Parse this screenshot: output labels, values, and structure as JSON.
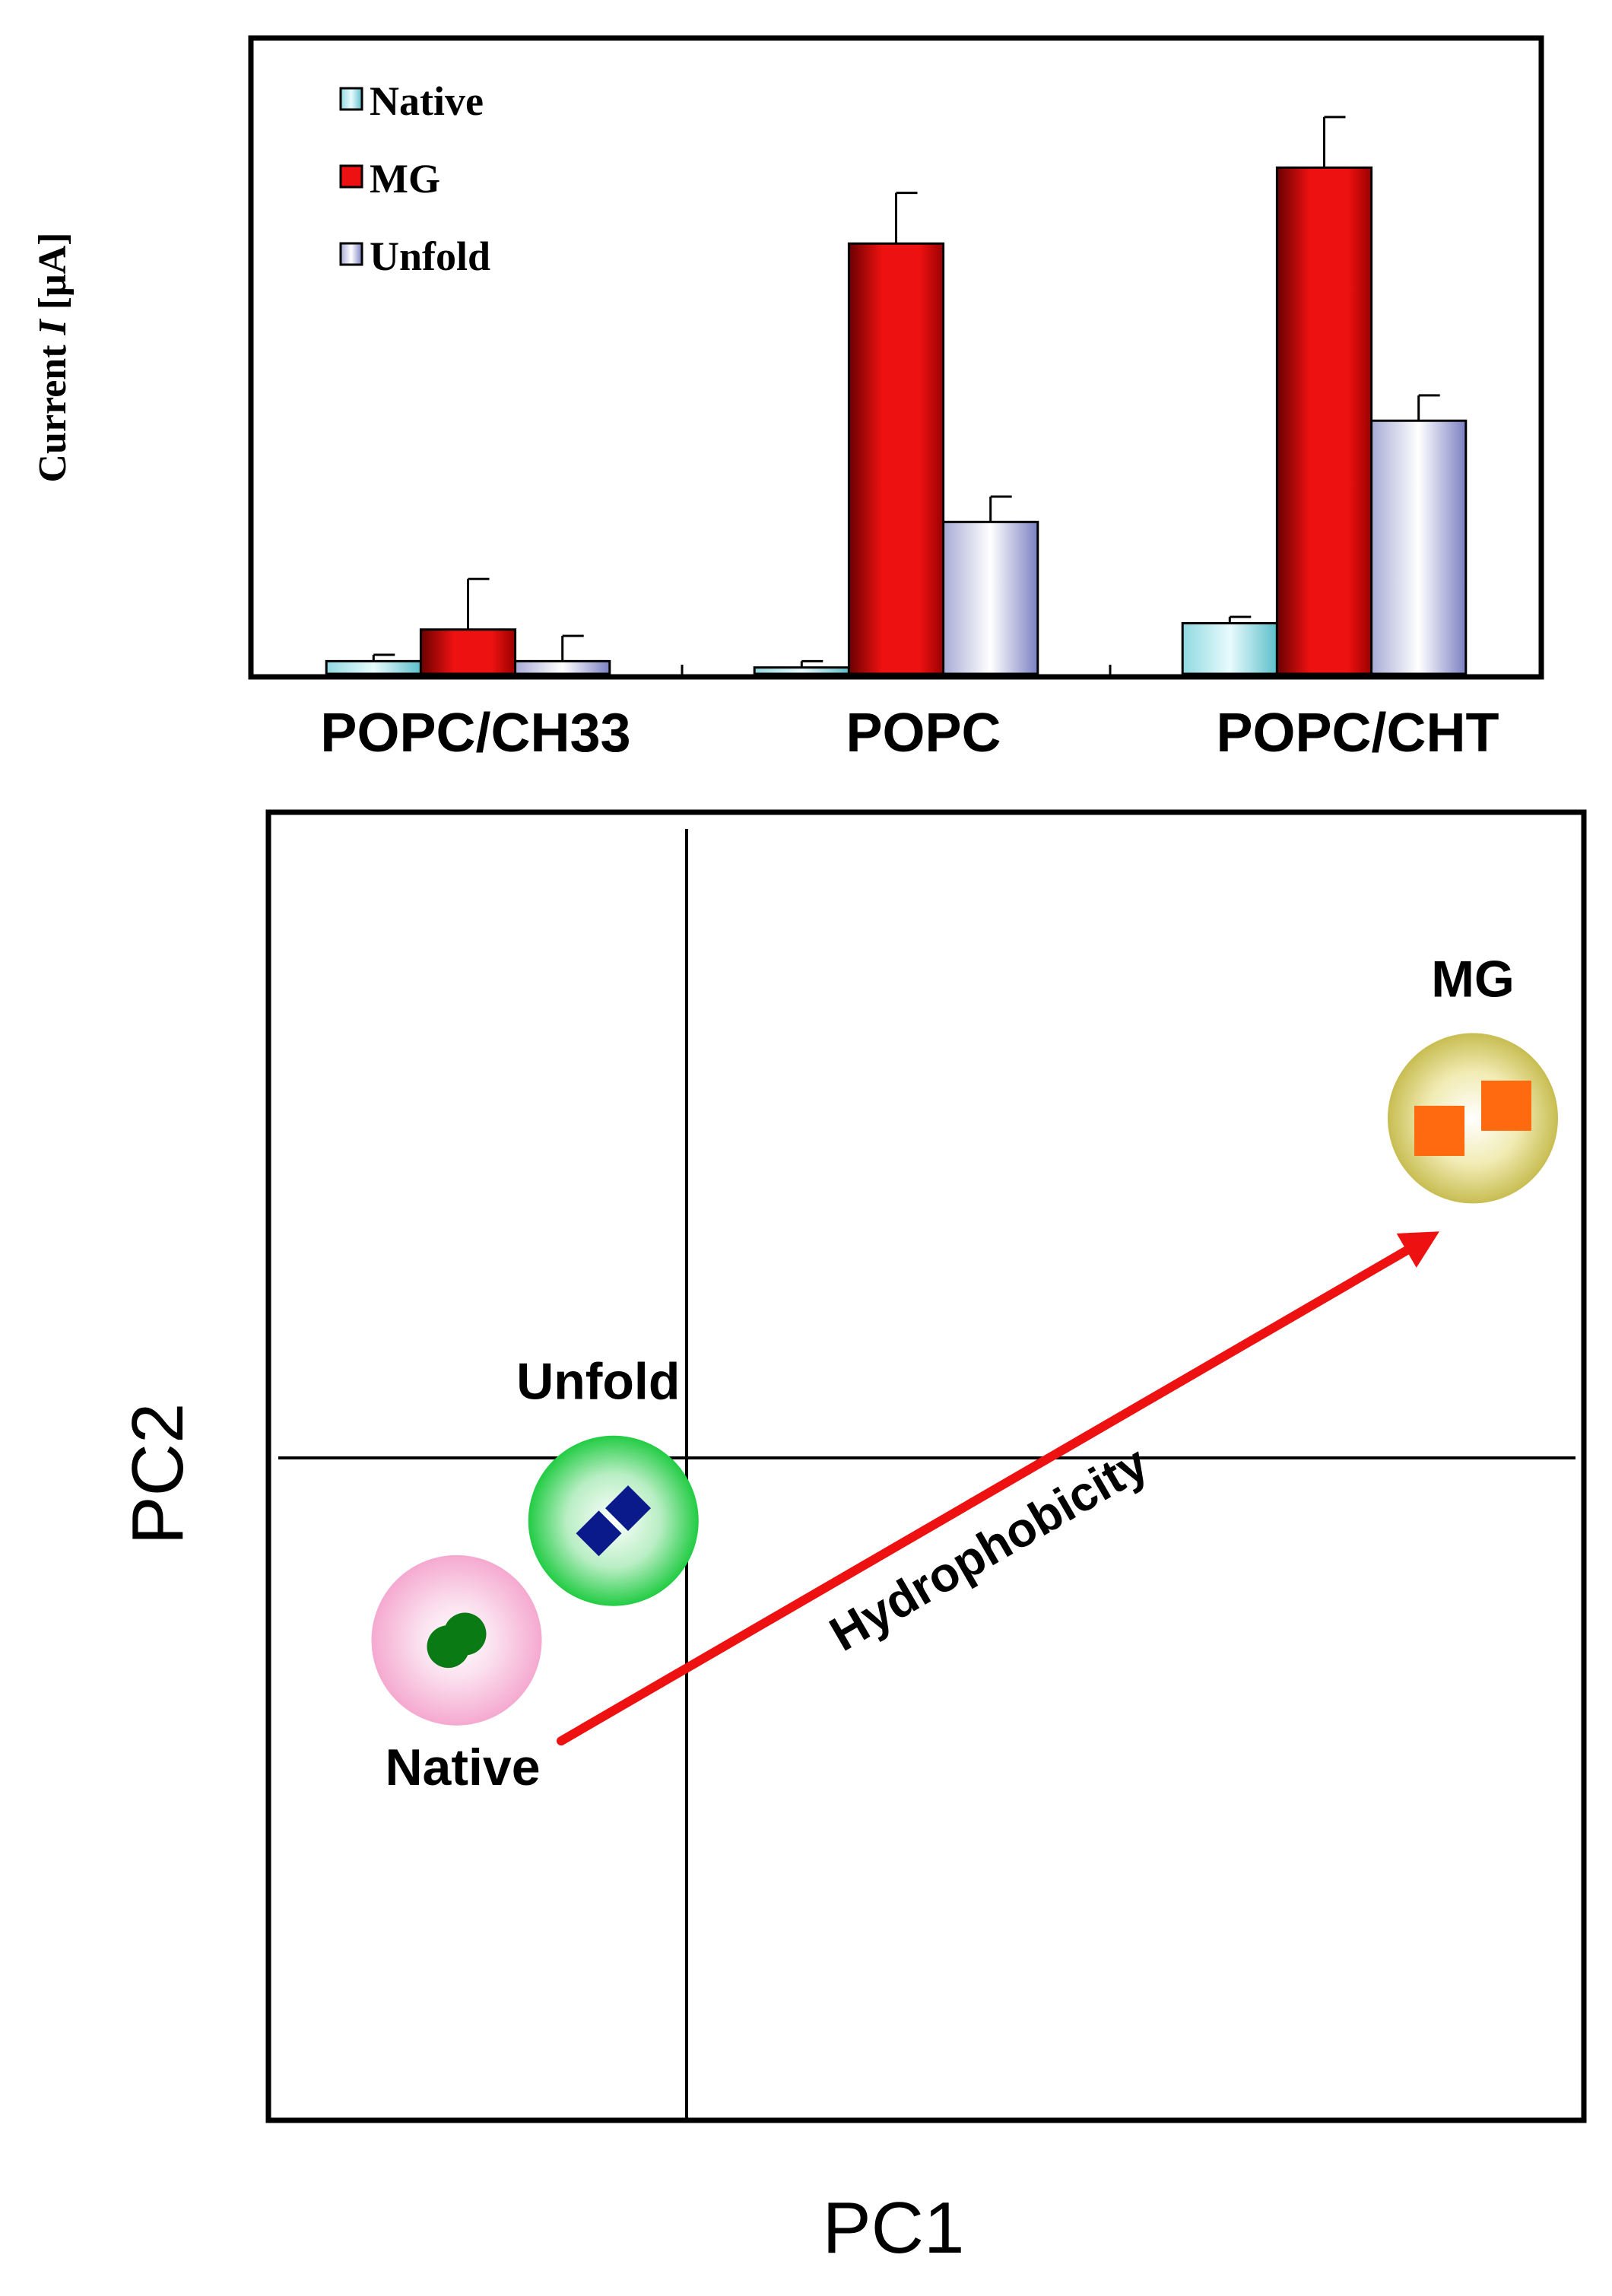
{
  "colors": {
    "native": "#aee9ef",
    "mg": "#ee1111",
    "unfold": "#e4e6f4",
    "arrow": "#ee1111",
    "native_blob": "#f5a9d0",
    "native_marker": "#0a7a14",
    "unfold_blob": "#22cc44",
    "unfold_marker": "#0a1a8a",
    "mg_blob": "#d8cf70",
    "mg_marker": "#ff6a10"
  },
  "chart_data": [
    {
      "type": "bar",
      "title": "",
      "xlabel": "",
      "ylabel": "Current I [μA]",
      "ylabel_parts": {
        "prefix": "Current ",
        "italic": "I",
        "suffix": " [μA]"
      },
      "categories": [
        "POPC/CH33",
        "POPC",
        "POPC/CHT"
      ],
      "ylim": [
        0,
        100
      ],
      "tick_labels_shown": false,
      "grid": false,
      "legend_position": "top-left",
      "series": [
        {
          "name": "Native",
          "color_key": "native",
          "values": [
            2,
            1,
            8
          ],
          "errors": [
            1,
            1,
            1
          ]
        },
        {
          "name": "MG",
          "color_key": "mg",
          "values": [
            7,
            68,
            80
          ],
          "errors": [
            8,
            8,
            8
          ]
        },
        {
          "name": "Unfold",
          "color_key": "unfold",
          "values": [
            2,
            24,
            40
          ],
          "errors": [
            4,
            4,
            4
          ]
        }
      ]
    },
    {
      "type": "scatter",
      "title": "",
      "xlabel": "PC1",
      "ylabel": "PC2",
      "xlim": [
        -1,
        1
      ],
      "ylim": [
        -1,
        1
      ],
      "grid": false,
      "legend_position": "none",
      "series": [
        {
          "name": "Native",
          "label": "Native",
          "color_key": "native_marker",
          "blob_key": "native_blob",
          "marker": "circle",
          "points": [
            [
              -0.57,
              -0.3
            ],
            [
              -0.53,
              -0.28
            ]
          ]
        },
        {
          "name": "Unfold",
          "label": "Unfold",
          "color_key": "unfold_marker",
          "blob_key": "unfold_blob",
          "marker": "diamond",
          "points": [
            [
              -0.21,
              -0.12
            ],
            [
              -0.14,
              -0.08
            ]
          ]
        },
        {
          "name": "MG",
          "label": "MG",
          "color_key": "mg_marker",
          "blob_key": "mg_blob",
          "marker": "square",
          "points": [
            [
              0.9,
              0.52
            ],
            [
              0.98,
              0.56
            ]
          ]
        }
      ],
      "annotation": {
        "text": "Hydrophobicity",
        "from": [
          -0.3,
          -0.45
        ],
        "to": [
          0.9,
          0.36
        ]
      }
    }
  ]
}
